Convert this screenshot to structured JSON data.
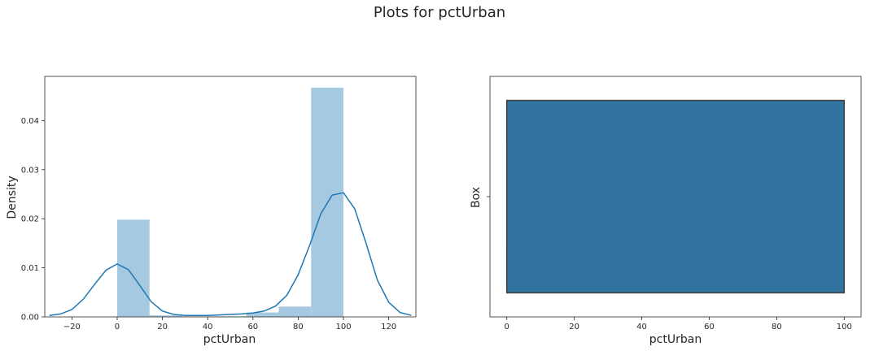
{
  "figure": {
    "title": "Plots for pctUrban"
  },
  "colors": {
    "hist_bar": "#a6c9e2",
    "kde_line": "#1f77b4",
    "box_fill": "#3274a1",
    "box_edge": "#3f3f3f",
    "axes_edge": "#262626",
    "text": "#262626"
  },
  "chart_data": [
    {
      "type": "bar",
      "subtype": "histogram-with-kde",
      "title": "",
      "xlabel": "pctUrban",
      "ylabel": "Density",
      "xlim": [
        -32,
        132
      ],
      "ylim": [
        0,
        0.049
      ],
      "xticks": [
        -20,
        0,
        20,
        40,
        60,
        80,
        100,
        120
      ],
      "xtick_labels": [
        "−20",
        "0",
        "20",
        "40",
        "60",
        "80",
        "100",
        "120"
      ],
      "yticks": [
        0,
        0.01,
        0.02,
        0.03,
        0.04
      ],
      "ytick_labels": [
        "0.00",
        "0.01",
        "0.02",
        "0.03",
        "0.04"
      ],
      "grid": false,
      "histogram": {
        "bin_edges": [
          0,
          14.3,
          28.6,
          42.9,
          57.1,
          71.4,
          85.7,
          100
        ],
        "values": [
          0.0198,
          0.0003,
          0.0001,
          0.0001,
          0.0009,
          0.0021,
          0.0467
        ]
      },
      "kde": {
        "x": [
          -30,
          -25,
          -20,
          -15,
          -10,
          -5,
          0,
          5,
          10,
          15,
          20,
          25,
          30,
          35,
          40,
          45,
          50,
          55,
          60,
          65,
          70,
          75,
          80,
          85,
          90,
          95,
          100,
          105,
          110,
          115,
          120,
          125,
          130
        ],
        "y": [
          0.0003,
          0.0006,
          0.0015,
          0.0036,
          0.0066,
          0.0095,
          0.0108,
          0.0096,
          0.0064,
          0.0031,
          0.0012,
          0.0005,
          0.0003,
          0.0003,
          0.0003,
          0.0004,
          0.0005,
          0.0006,
          0.0008,
          0.0012,
          0.0022,
          0.0044,
          0.0086,
          0.0145,
          0.021,
          0.0248,
          0.0253,
          0.022,
          0.015,
          0.0075,
          0.003,
          0.0009,
          0.0003
        ]
      }
    },
    {
      "type": "box",
      "title": "",
      "xlabel": "pctUrban",
      "ylabel": "Box",
      "xlim": [
        -5,
        105
      ],
      "xticks": [
        0,
        20,
        40,
        60,
        80,
        100
      ],
      "xtick_labels": [
        "0",
        "20",
        "40",
        "60",
        "80",
        "100"
      ],
      "grid": false,
      "box": {
        "q1": 0,
        "q3": 100,
        "median": 100,
        "whisker_low": 0,
        "whisker_high": 100
      }
    }
  ]
}
